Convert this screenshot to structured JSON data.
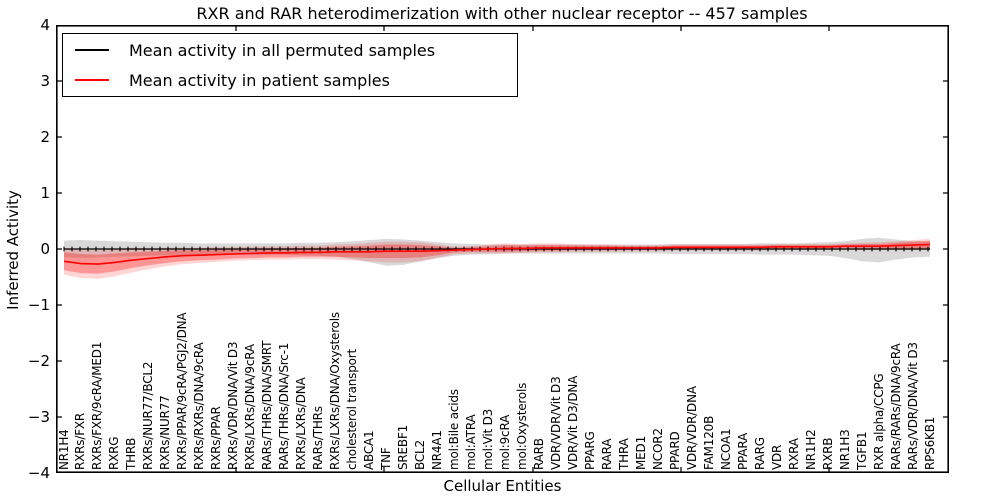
{
  "chart_data": {
    "type": "line",
    "title": "RXR and RAR heterodimerization with other nuclear receptor -- 457 samples",
    "xlabel": "Cellular Entities",
    "ylabel": "Inferred Activity",
    "ylim": [
      -4,
      4
    ],
    "ytick_labels": [
      "4",
      "3",
      "2",
      "1",
      "0",
      "−1",
      "−2",
      "−3",
      "−4"
    ],
    "grid": false,
    "legend_position": "upper left",
    "legend": [
      "Mean activity in all permuted samples",
      "Mean activity in patient samples"
    ],
    "colors": {
      "permuted_line": "#000000",
      "patient_line": "#ff0000",
      "permuted_band": "rgba(0,0,0,0.15)",
      "patient_band_outer": "rgba(255,0,0,0.16)",
      "patient_band_inner": "rgba(255,0,0,0.30)"
    },
    "categories": [
      "NR1H4",
      "RXRs/FXR",
      "RXRs/FXR/9cRA/MED1",
      "RXRG",
      "THRB",
      "RXRs/NUR77/BCL2",
      "RXRs/NUR77",
      "RXRs/PPAR/9cRA/PGJ2/DNA",
      "RXRs/RXRs/DNA/9cRA",
      "RXRs/PPAR",
      "RXRs/VDR/DNA/Vit D3",
      "RXRs/LXRs/DNA/9cRA",
      "RARs/THRs/DNA/SMRT",
      "RARs/THRs/DNA/Src-1",
      "RXRs/LXRs/DNA",
      "RARs/THRs",
      "RXRs/LXRs/DNA/Oxysterols",
      "cholesterol transport",
      "ABCA1",
      "TNF",
      "SREBF1",
      "BCL2",
      "NR4A1",
      "mol:Bile acids",
      "mol:ATRA",
      "mol:Vit D3",
      "mol:9cRA",
      "mol:Oxysterols",
      "RARB",
      "VDR/VDR/Vit D3",
      "VDR/Vit D3/DNA",
      "PPARG",
      "RARA",
      "THRA",
      "MED1",
      "NCOR2",
      "PPARD",
      "VDR/VDR/DNA",
      "FAM120B",
      "NCOA1",
      "PPARA",
      "RARG",
      "VDR",
      "RXRA",
      "NR1H2",
      "RXRB",
      "NR1H3",
      "TGFB1",
      "RXR alpha/CCPG",
      "RARs/RARs/DNA/9cRA",
      "RARs/VDR/DNA/Vit D3",
      "RPS6KB1"
    ],
    "series": [
      {
        "name": "Mean activity in all permuted samples",
        "values": [
          0,
          0,
          0,
          0,
          0,
          0,
          0,
          0,
          0,
          0,
          0,
          0,
          0,
          0,
          0,
          0,
          0,
          0,
          0,
          0,
          0,
          0,
          0,
          0,
          0,
          0,
          0,
          0,
          0,
          0,
          0,
          0,
          0,
          0,
          0,
          0,
          0,
          0,
          0,
          0,
          0,
          0,
          0,
          0,
          0,
          0,
          0,
          0,
          0,
          0,
          0,
          0
        ],
        "band_upper": [
          0.15,
          0.16,
          0.15,
          0.14,
          0.13,
          0.12,
          0.11,
          0.11,
          0.1,
          0.1,
          0.1,
          0.1,
          0.1,
          0.1,
          0.11,
          0.11,
          0.12,
          0.14,
          0.16,
          0.18,
          0.17,
          0.15,
          0.12,
          0.1,
          0.09,
          0.08,
          0.08,
          0.08,
          0.08,
          0.08,
          0.08,
          0.08,
          0.08,
          0.08,
          0.08,
          0.08,
          0.09,
          0.09,
          0.09,
          0.09,
          0.09,
          0.1,
          0.1,
          0.1,
          0.11,
          0.12,
          0.14,
          0.18,
          0.2,
          0.17,
          0.14,
          0.13
        ],
        "band_lower": [
          -0.15,
          -0.16,
          -0.15,
          -0.14,
          -0.13,
          -0.12,
          -0.11,
          -0.11,
          -0.1,
          -0.1,
          -0.1,
          -0.1,
          -0.1,
          -0.1,
          -0.11,
          -0.12,
          -0.14,
          -0.18,
          -0.24,
          -0.3,
          -0.28,
          -0.22,
          -0.16,
          -0.12,
          -0.1,
          -0.09,
          -0.08,
          -0.08,
          -0.08,
          -0.08,
          -0.08,
          -0.08,
          -0.08,
          -0.08,
          -0.08,
          -0.08,
          -0.09,
          -0.09,
          -0.09,
          -0.09,
          -0.09,
          -0.1,
          -0.1,
          -0.1,
          -0.11,
          -0.12,
          -0.16,
          -0.22,
          -0.24,
          -0.19,
          -0.15,
          -0.14
        ]
      },
      {
        "name": "Mean activity in patient samples",
        "values": [
          -0.22,
          -0.26,
          -0.27,
          -0.24,
          -0.2,
          -0.17,
          -0.14,
          -0.12,
          -0.11,
          -0.1,
          -0.09,
          -0.08,
          -0.07,
          -0.07,
          -0.06,
          -0.06,
          -0.05,
          -0.05,
          -0.05,
          -0.04,
          -0.04,
          -0.04,
          -0.03,
          -0.02,
          -0.01,
          0.0,
          0.01,
          0.01,
          0.02,
          0.02,
          0.02,
          0.02,
          0.02,
          0.02,
          0.02,
          0.02,
          0.03,
          0.03,
          0.03,
          0.03,
          0.03,
          0.03,
          0.04,
          0.04,
          0.04,
          0.04,
          0.05,
          0.05,
          0.05,
          0.06,
          0.07,
          0.08
        ],
        "band_inner_upper": [
          -0.06,
          -0.09,
          -0.1,
          -0.08,
          -0.06,
          -0.05,
          -0.03,
          -0.02,
          -0.02,
          -0.01,
          -0.01,
          0.0,
          0.01,
          0.01,
          0.02,
          0.02,
          0.04,
          0.05,
          0.06,
          0.08,
          0.08,
          0.07,
          0.05,
          0.02,
          0.03,
          0.05,
          0.07,
          0.06,
          0.07,
          0.07,
          0.06,
          0.06,
          0.06,
          0.05,
          0.05,
          0.05,
          0.06,
          0.06,
          0.06,
          0.06,
          0.06,
          0.06,
          0.07,
          0.07,
          0.07,
          0.07,
          0.08,
          0.09,
          0.09,
          0.11,
          0.13,
          0.15
        ],
        "band_inner_lower": [
          -0.38,
          -0.43,
          -0.44,
          -0.4,
          -0.34,
          -0.29,
          -0.25,
          -0.22,
          -0.2,
          -0.19,
          -0.17,
          -0.16,
          -0.15,
          -0.15,
          -0.14,
          -0.14,
          -0.14,
          -0.15,
          -0.16,
          -0.16,
          -0.16,
          -0.15,
          -0.11,
          -0.06,
          -0.05,
          -0.05,
          -0.05,
          -0.04,
          -0.03,
          -0.03,
          -0.02,
          -0.02,
          -0.02,
          -0.01,
          -0.01,
          -0.01,
          0.0,
          0.0,
          0.0,
          0.0,
          0.0,
          0.0,
          0.01,
          0.01,
          0.01,
          0.01,
          0.02,
          0.01,
          0.01,
          0.01,
          0.01,
          0.01
        ],
        "band_outer_upper": [
          0.02,
          -0.01,
          -0.02,
          0.0,
          0.02,
          0.01,
          0.02,
          0.02,
          0.02,
          0.03,
          0.03,
          0.04,
          0.05,
          0.05,
          0.06,
          0.06,
          0.08,
          0.09,
          0.11,
          0.13,
          0.13,
          0.12,
          0.08,
          0.04,
          0.05,
          0.08,
          0.1,
          0.09,
          0.1,
          0.1,
          0.09,
          0.08,
          0.08,
          0.07,
          0.07,
          0.07,
          0.08,
          0.08,
          0.08,
          0.08,
          0.08,
          0.08,
          0.09,
          0.09,
          0.09,
          0.09,
          0.1,
          0.11,
          0.12,
          0.14,
          0.16,
          0.18
        ],
        "band_outer_lower": [
          -0.46,
          -0.52,
          -0.53,
          -0.49,
          -0.42,
          -0.36,
          -0.31,
          -0.27,
          -0.25,
          -0.23,
          -0.21,
          -0.2,
          -0.19,
          -0.19,
          -0.18,
          -0.18,
          -0.19,
          -0.2,
          -0.22,
          -0.24,
          -0.24,
          -0.22,
          -0.16,
          -0.09,
          -0.08,
          -0.08,
          -0.08,
          -0.07,
          -0.06,
          -0.06,
          -0.05,
          -0.05,
          -0.05,
          -0.04,
          -0.04,
          -0.04,
          -0.03,
          -0.03,
          -0.03,
          -0.03,
          -0.03,
          -0.03,
          -0.02,
          -0.02,
          -0.02,
          -0.02,
          -0.01,
          -0.02,
          -0.02,
          -0.02,
          -0.02,
          -0.02
        ]
      }
    ]
  }
}
